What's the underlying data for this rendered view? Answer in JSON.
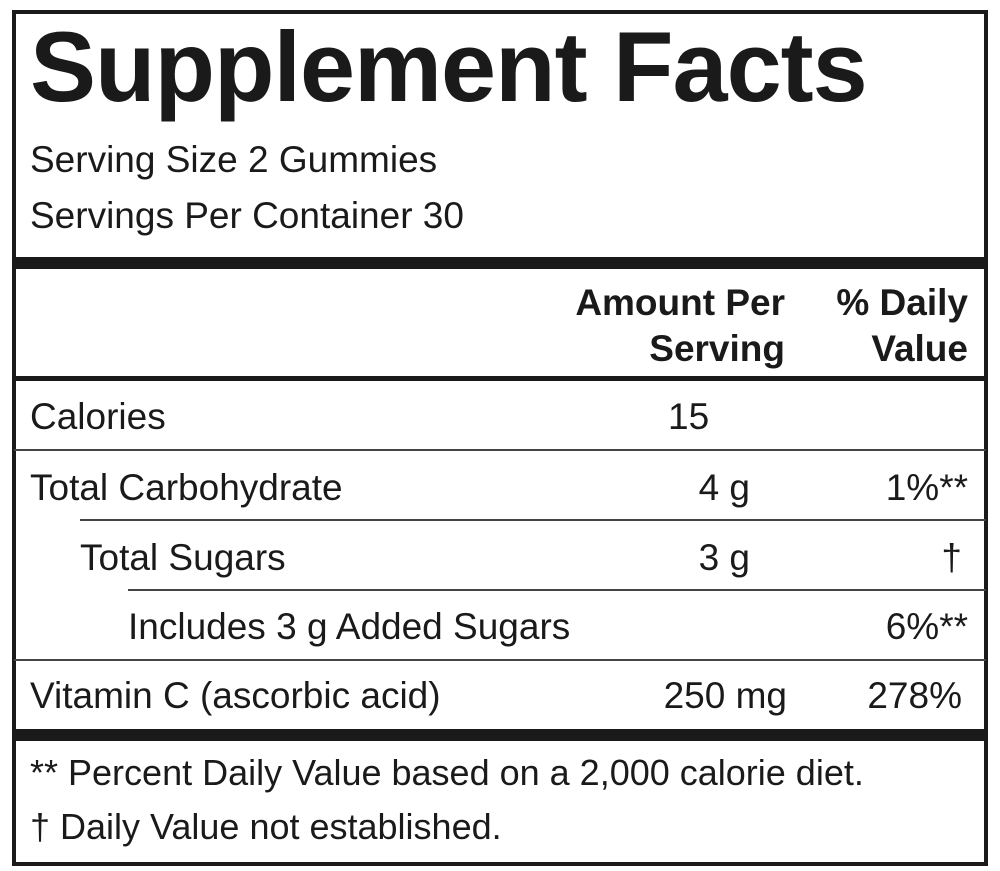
{
  "header": {
    "title": "Supplement Facts",
    "serving_size": "Serving Size 2 Gummies",
    "servings_per_container": "Servings Per Container 30"
  },
  "table": {
    "columns": [
      "Amount Per Serving",
      "% Daily Value"
    ],
    "rows": [
      {
        "name": "Calories",
        "amount": "15"
      },
      {
        "name": "Total Carbohydrate",
        "amount": "4 g",
        "daily_value": "1%**"
      },
      {
        "name": "Total Sugars",
        "amount": "3 g",
        "daily_value": "†"
      },
      {
        "name": "Includes 3 g Added Sugars",
        "daily_value": "6%**"
      },
      {
        "name": "Vitamin C (ascorbic acid)",
        "amount": "250 mg",
        "daily_value": "278%"
      }
    ]
  },
  "footnotes": [
    "** Percent Daily Value based on a 2,000 calorie diet.",
    "† Daily Value not established."
  ]
}
